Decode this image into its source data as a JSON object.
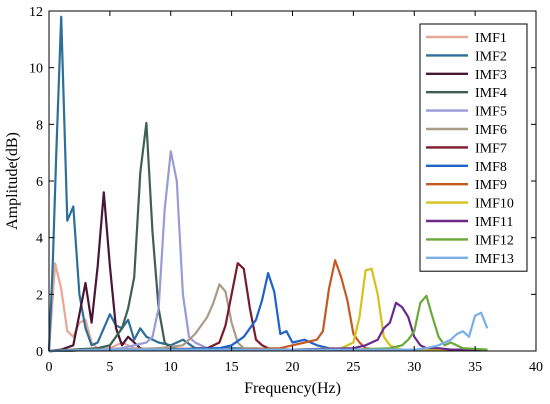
{
  "chart_data": {
    "type": "line",
    "xlabel": "Frequency(Hz)",
    "ylabel": "Amplitude(dB)",
    "xlim": [
      0,
      40
    ],
    "ylim": [
      0,
      12
    ],
    "xticks": [
      "0",
      "5",
      "10",
      "15",
      "20",
      "25",
      "30",
      "35",
      "40"
    ],
    "yticks": [
      "0",
      "2",
      "4",
      "6",
      "8",
      "10",
      "12"
    ],
    "grid": false,
    "legend_position": "top-right",
    "series": [
      {
        "name": "IMF1",
        "color": "#e8a898",
        "x": [
          0,
          0.5,
          1,
          1.5,
          2,
          2.5,
          3,
          3.5,
          4,
          5,
          6,
          7,
          8,
          10,
          15,
          20,
          25,
          30,
          36
        ],
        "y": [
          0,
          3.1,
          2.2,
          0.7,
          0.5,
          1.0,
          1.1,
          0.3,
          0.1,
          0.1,
          0.3,
          0.1,
          0.05,
          0.1,
          0.05,
          0.05,
          0.03,
          0.03,
          0.02
        ]
      },
      {
        "name": "IMF2",
        "color": "#2e6f9a",
        "x": [
          0,
          0.3,
          0.6,
          1,
          1.5,
          2,
          2.5,
          3,
          3.5,
          4,
          4.5,
          5,
          5.5,
          6,
          6.5,
          7,
          7.5,
          8,
          9,
          10,
          11,
          12,
          15,
          20,
          25,
          30,
          36
        ],
        "y": [
          0,
          3.0,
          7.0,
          11.8,
          4.6,
          5.1,
          2.0,
          0.8,
          0.2,
          0.3,
          0.8,
          1.3,
          0.9,
          0.8,
          1.1,
          0.4,
          0.8,
          0.5,
          0.3,
          0.2,
          0.4,
          0.1,
          0.1,
          0.05,
          0.05,
          0.05,
          0.05
        ]
      },
      {
        "name": "IMF3",
        "color": "#4a1636",
        "x": [
          0,
          1,
          2,
          3,
          3.5,
          4,
          4.5,
          5,
          5.5,
          6,
          6.5,
          7,
          7.5,
          8,
          9,
          10,
          12,
          15,
          20,
          25,
          30,
          36
        ],
        "y": [
          0,
          0.05,
          0.2,
          2.4,
          1.0,
          3.0,
          5.6,
          3.0,
          0.8,
          0.2,
          0.5,
          0.3,
          0.1,
          0.05,
          0.1,
          0.05,
          0.05,
          0.05,
          0.05,
          0.05,
          0.05,
          0.05
        ]
      },
      {
        "name": "IMF4",
        "color": "#3f5f52",
        "x": [
          0,
          2,
          4,
          5,
          6,
          6.5,
          7,
          7.5,
          8,
          8.5,
          9,
          9.5,
          10,
          11,
          12,
          15,
          20,
          25,
          30,
          36
        ],
        "y": [
          0,
          0.05,
          0.1,
          0.2,
          0.8,
          1.5,
          2.6,
          6.3,
          8.05,
          4.2,
          1.5,
          0.3,
          0.1,
          0.05,
          0.05,
          0.05,
          0.05,
          0.05,
          0.05,
          0.05
        ]
      },
      {
        "name": "IMF5",
        "color": "#9a9ad6",
        "x": [
          0,
          4,
          6,
          7,
          8,
          8.5,
          9,
          9.5,
          10,
          10.5,
          11,
          11.5,
          12,
          13,
          15,
          20,
          25,
          30,
          36
        ],
        "y": [
          0,
          0.05,
          0.1,
          0.2,
          0.3,
          0.5,
          1.5,
          5.0,
          7.05,
          6.0,
          2.0,
          0.5,
          0.3,
          0.1,
          0.05,
          0.05,
          0.05,
          0.05,
          0.05
        ]
      },
      {
        "name": "IMF6",
        "color": "#a89b88",
        "x": [
          0,
          5,
          9,
          11,
          12,
          12.5,
          13,
          13.5,
          14,
          14.5,
          15,
          15.5,
          16,
          17,
          18,
          20,
          25,
          30,
          36
        ],
        "y": [
          0,
          0.05,
          0.1,
          0.2,
          0.6,
          0.9,
          1.2,
          1.7,
          2.35,
          2.1,
          1.0,
          0.3,
          0.1,
          0.1,
          0.05,
          0.05,
          0.05,
          0.05,
          0.05
        ]
      },
      {
        "name": "IMF7",
        "color": "#7a1a2a",
        "x": [
          0,
          5,
          10,
          13,
          14,
          14.5,
          15,
          15.5,
          16,
          16.5,
          17,
          17.5,
          18,
          19,
          20,
          25,
          30,
          36
        ],
        "y": [
          0,
          0.05,
          0.05,
          0.1,
          0.3,
          0.9,
          2.0,
          3.1,
          2.9,
          1.5,
          0.4,
          0.2,
          0.1,
          0.05,
          0.05,
          0.05,
          0.05,
          0.05
        ]
      },
      {
        "name": "IMF8",
        "color": "#1f63c8",
        "x": [
          0,
          5,
          10,
          14,
          15,
          16,
          17,
          17.5,
          18,
          18.5,
          19,
          19.5,
          20,
          21,
          22,
          23,
          25,
          30,
          36
        ],
        "y": [
          0,
          0.05,
          0.05,
          0.1,
          0.2,
          0.5,
          1.1,
          1.8,
          2.75,
          2.1,
          0.6,
          0.7,
          0.3,
          0.4,
          0.2,
          0.1,
          0.05,
          0.05,
          0.05
        ]
      },
      {
        "name": "IMF9",
        "color": "#c45a22",
        "x": [
          0,
          5,
          10,
          15,
          19,
          20,
          21,
          22,
          22.5,
          23,
          23.5,
          24,
          24.5,
          25,
          25.5,
          26,
          27,
          30,
          36
        ],
        "y": [
          0,
          0.05,
          0.05,
          0.05,
          0.1,
          0.2,
          0.3,
          0.4,
          0.7,
          2.2,
          3.2,
          2.6,
          1.8,
          0.6,
          0.3,
          0.1,
          0.05,
          0.05,
          0.05
        ]
      },
      {
        "name": "IMF10",
        "color": "#d4c21c",
        "x": [
          0,
          5,
          10,
          15,
          20,
          24,
          25,
          25.5,
          26,
          26.5,
          27,
          27.5,
          28,
          28.5,
          29,
          30,
          36
        ],
        "y": [
          0,
          0.05,
          0.05,
          0.05,
          0.05,
          0.1,
          0.3,
          1.2,
          2.85,
          2.9,
          2.0,
          0.5,
          0.2,
          0.1,
          0.05,
          0.05,
          0.05
        ]
      },
      {
        "name": "IMF11",
        "color": "#6a2a8c",
        "x": [
          0,
          5,
          10,
          15,
          20,
          25,
          26,
          27,
          27.5,
          28,
          28.5,
          29,
          29.5,
          30,
          30.5,
          31,
          32,
          33,
          36
        ],
        "y": [
          0,
          0.05,
          0.05,
          0.05,
          0.05,
          0.1,
          0.2,
          0.4,
          0.8,
          1.0,
          1.7,
          1.55,
          1.2,
          0.5,
          0.2,
          0.1,
          0.1,
          0.05,
          0.05
        ]
      },
      {
        "name": "IMF12",
        "color": "#6aa83a",
        "x": [
          0,
          5,
          10,
          15,
          20,
          25,
          28,
          29,
          29.5,
          30,
          30.5,
          31,
          31.5,
          32,
          32.5,
          33,
          34,
          36
        ],
        "y": [
          0,
          0.05,
          0.05,
          0.05,
          0.05,
          0.05,
          0.1,
          0.2,
          0.4,
          0.7,
          1.7,
          1.95,
          1.2,
          0.5,
          0.2,
          0.3,
          0.1,
          0.05
        ]
      },
      {
        "name": "IMF13",
        "color": "#7aaee8",
        "x": [
          0,
          5,
          10,
          15,
          20,
          25,
          30,
          31,
          32,
          32.5,
          33,
          33.5,
          34,
          34.5,
          35,
          35.5,
          36
        ],
        "y": [
          0,
          0.05,
          0.05,
          0.05,
          0.05,
          0.05,
          0.05,
          0.1,
          0.2,
          0.3,
          0.4,
          0.6,
          0.7,
          0.5,
          1.25,
          1.35,
          0.8
        ]
      }
    ]
  }
}
